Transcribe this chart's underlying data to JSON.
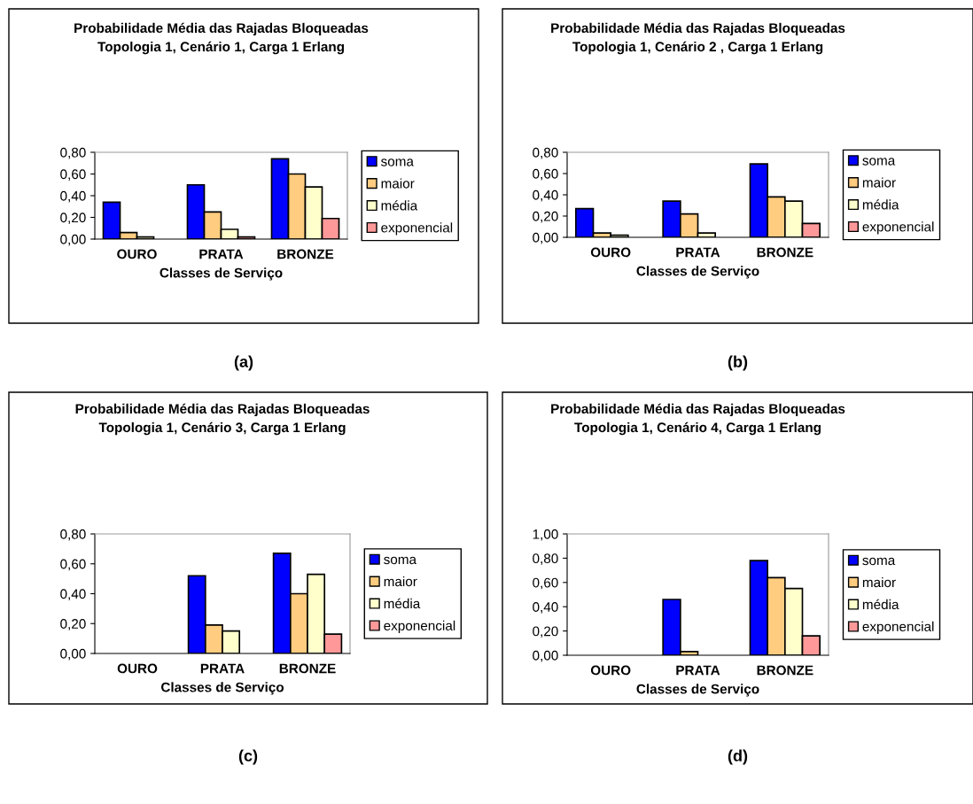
{
  "chart_data": [
    {
      "type": "bar",
      "title": "Probabilidade Média das Rajadas Bloqueadas\nTopologia 1, Cenário 1, Carga 1 Erlang",
      "xlabel": "Classes de Serviço",
      "categories": [
        "OURO",
        "PRATA",
        "BRONZE"
      ],
      "ylim": [
        0,
        0.8
      ],
      "yticks": [
        {
          "value": 0,
          "label": "0,00"
        },
        {
          "value": 0.2,
          "label": "0,20"
        },
        {
          "value": 0.4,
          "label": "0,40"
        },
        {
          "value": 0.6,
          "label": "0,60"
        },
        {
          "value": 0.8,
          "label": "0,80"
        }
      ],
      "legend": "right",
      "annotations": [
        "(a)"
      ],
      "series": [
        {
          "name": "soma",
          "color": "#0000ff",
          "values": [
            0.34,
            0.5,
            0.74
          ]
        },
        {
          "name": "maior",
          "color": "#ffcc80",
          "values": [
            0.06,
            0.25,
            0.6
          ]
        },
        {
          "name": "média",
          "color": "#ffffcc",
          "values": [
            0.02,
            0.09,
            0.48
          ]
        },
        {
          "name": "exponencial",
          "color": "#ff9999",
          "values": [
            0,
            0.02,
            0.19
          ]
        }
      ]
    },
    {
      "type": "bar",
      "title": "Probabilidade Média das Rajadas Bloqueadas\nTopologia 1, Cenário 2 , Carga 1 Erlang",
      "xlabel": "Classes de Serviço",
      "categories": [
        "OURO",
        "PRATA",
        "BRONZE"
      ],
      "ylim": [
        0,
        0.8
      ],
      "yticks": [
        {
          "value": 0,
          "label": "0,00"
        },
        {
          "value": 0.2,
          "label": "0,20"
        },
        {
          "value": 0.4,
          "label": "0,40"
        },
        {
          "value": 0.6,
          "label": "0,60"
        },
        {
          "value": 0.8,
          "label": "0,80"
        }
      ],
      "legend": "right",
      "annotations": [
        "(b)"
      ],
      "series": [
        {
          "name": "soma",
          "color": "#0000ff",
          "values": [
            0.27,
            0.34,
            0.69
          ]
        },
        {
          "name": "maior",
          "color": "#ffcc80",
          "values": [
            0.04,
            0.22,
            0.38
          ]
        },
        {
          "name": "média",
          "color": "#ffffcc",
          "values": [
            0.02,
            0.04,
            0.34
          ]
        },
        {
          "name": "exponencial",
          "color": "#ff9999",
          "values": [
            0,
            0,
            0.13
          ]
        }
      ]
    },
    {
      "type": "bar",
      "title": "Probabilidade Média das Rajadas Bloqueadas\nTopologia 1, Cenário 3, Carga 1 Erlang",
      "xlabel": "Classes de Serviço",
      "categories": [
        "OURO",
        "PRATA",
        "BRONZE"
      ],
      "ylim": [
        0,
        0.8
      ],
      "yticks": [
        {
          "value": 0,
          "label": "0,00"
        },
        {
          "value": 0.2,
          "label": "0,20"
        },
        {
          "value": 0.4,
          "label": "0,40"
        },
        {
          "value": 0.6,
          "label": "0,60"
        },
        {
          "value": 0.8,
          "label": "0,80"
        }
      ],
      "legend": "right",
      "annotations": [
        "(c)"
      ],
      "series": [
        {
          "name": "soma",
          "color": "#0000ff",
          "values": [
            0,
            0.52,
            0.67
          ]
        },
        {
          "name": "maior",
          "color": "#ffcc80",
          "values": [
            0,
            0.19,
            0.4
          ]
        },
        {
          "name": "média",
          "color": "#ffffcc",
          "values": [
            0,
            0.15,
            0.53
          ]
        },
        {
          "name": "exponencial",
          "color": "#ff9999",
          "values": [
            0,
            0,
            0.13
          ]
        }
      ]
    },
    {
      "type": "bar",
      "title": "Probabilidade Média das Rajadas Bloqueadas\nTopologia 1, Cenário 4, Carga 1 Erlang",
      "xlabel": "Classes de Serviço",
      "categories": [
        "OURO",
        "PRATA",
        "BRONZE"
      ],
      "ylim": [
        0,
        1.0
      ],
      "yticks": [
        {
          "value": 0,
          "label": "0,00"
        },
        {
          "value": 0.2,
          "label": "0,20"
        },
        {
          "value": 0.4,
          "label": "0,40"
        },
        {
          "value": 0.6,
          "label": "0,60"
        },
        {
          "value": 0.8,
          "label": "0,80"
        },
        {
          "value": 1.0,
          "label": "1,00"
        }
      ],
      "legend": "right",
      "annotations": [
        "(d)"
      ],
      "series": [
        {
          "name": "soma",
          "color": "#0000ff",
          "values": [
            0,
            0.46,
            0.78
          ]
        },
        {
          "name": "maior",
          "color": "#ffcc80",
          "values": [
            0,
            0.03,
            0.64
          ]
        },
        {
          "name": "média",
          "color": "#ffffcc",
          "values": [
            0,
            0,
            0.55
          ]
        },
        {
          "name": "exponencial",
          "color": "#ff9999",
          "values": [
            0,
            0,
            0.16
          ]
        }
      ]
    }
  ]
}
